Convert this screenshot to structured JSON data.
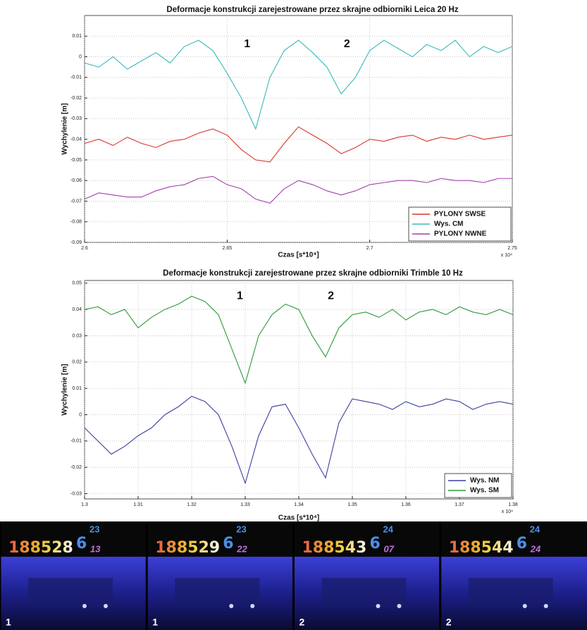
{
  "chart_data": [
    {
      "type": "line",
      "title": "Deformacje konstrukcji zarejestrowane przez skrajne odbiorniki Leica 20 Hz",
      "xlabel": "Czas [s*10⁴]",
      "ylabel": "Wychylenie [m]",
      "x_multiplier": "x 10⁴",
      "annotations": [
        "1",
        "2"
      ],
      "grid": true,
      "legend": "lower right",
      "xlim": [
        2.6,
        2.75
      ],
      "xticks": [
        2.6,
        2.65,
        2.7,
        2.75
      ],
      "ylim": [
        -0.09,
        0.02
      ],
      "yticks": [
        0.01,
        0,
        -0.01,
        -0.02,
        -0.03,
        -0.04,
        -0.05,
        -0.06,
        -0.07,
        -0.08,
        -0.09
      ],
      "x": [
        2.6,
        2.605,
        2.61,
        2.615,
        2.62,
        2.625,
        2.63,
        2.635,
        2.64,
        2.645,
        2.65,
        2.655,
        2.66,
        2.665,
        2.67,
        2.675,
        2.68,
        2.685,
        2.69,
        2.695,
        2.7,
        2.705,
        2.71,
        2.715,
        2.72,
        2.725,
        2.73,
        2.735,
        2.74,
        2.745,
        2.75
      ],
      "series": [
        {
          "name": "PYLONY SWSE",
          "color": "#d9342b",
          "values": [
            -0.042,
            -0.04,
            -0.043,
            -0.039,
            -0.042,
            -0.044,
            -0.041,
            -0.04,
            -0.037,
            -0.035,
            -0.038,
            -0.045,
            -0.05,
            -0.051,
            -0.042,
            -0.034,
            -0.038,
            -0.042,
            -0.047,
            -0.044,
            -0.04,
            -0.041,
            -0.039,
            -0.038,
            -0.041,
            -0.039,
            -0.04,
            -0.038,
            -0.04,
            -0.039,
            -0.038
          ]
        },
        {
          "name": "Wys. CM",
          "color": "#3cb8b8",
          "values": [
            -0.003,
            -0.005,
            0.0,
            -0.006,
            -0.002,
            0.002,
            -0.003,
            0.005,
            0.008,
            0.003,
            -0.008,
            -0.02,
            -0.035,
            -0.01,
            0.003,
            0.008,
            0.002,
            -0.005,
            -0.018,
            -0.01,
            0.003,
            0.008,
            0.004,
            0.0,
            0.006,
            0.003,
            0.008,
            0.0,
            0.005,
            0.002,
            0.005
          ]
        },
        {
          "name": "PYLONY NWNE",
          "color": "#a040a8",
          "values": [
            -0.069,
            -0.066,
            -0.067,
            -0.068,
            -0.068,
            -0.065,
            -0.063,
            -0.062,
            -0.059,
            -0.058,
            -0.062,
            -0.064,
            -0.069,
            -0.071,
            -0.064,
            -0.06,
            -0.062,
            -0.065,
            -0.067,
            -0.065,
            -0.062,
            -0.061,
            -0.06,
            -0.06,
            -0.061,
            -0.059,
            -0.06,
            -0.06,
            -0.061,
            -0.059,
            -0.059
          ]
        }
      ]
    },
    {
      "type": "line",
      "title": "Deformacje konstrukcji zarejestrowane przez skrajne odbiorniki Trimble 10 Hz",
      "xlabel": "Czas [s*10⁴]",
      "ylabel": "Wychylenie [m]",
      "x_multiplier": "x 10⁴",
      "annotations": [
        "1",
        "2"
      ],
      "grid": true,
      "legend": "lower right",
      "xlim": [
        1.3,
        1.38
      ],
      "xticks": [
        1.3,
        1.31,
        1.32,
        1.33,
        1.34,
        1.35,
        1.36,
        1.37,
        1.38
      ],
      "ylim": [
        -0.032,
        0.051
      ],
      "yticks": [
        0.05,
        0.04,
        0.03,
        0.02,
        0.01,
        0,
        -0.01,
        -0.02,
        -0.03
      ],
      "x": [
        1.3,
        1.3025,
        1.305,
        1.3075,
        1.31,
        1.3125,
        1.315,
        1.3175,
        1.32,
        1.3225,
        1.325,
        1.3275,
        1.33,
        1.3325,
        1.335,
        1.3375,
        1.34,
        1.3425,
        1.345,
        1.3475,
        1.35,
        1.3525,
        1.355,
        1.3575,
        1.36,
        1.3625,
        1.365,
        1.3675,
        1.37,
        1.3725,
        1.375,
        1.3775,
        1.38
      ],
      "series": [
        {
          "name": "Wys. NM",
          "color": "#3a3fa0",
          "values": [
            -0.005,
            -0.01,
            -0.015,
            -0.012,
            -0.008,
            -0.005,
            0.0,
            0.003,
            0.007,
            0.005,
            0.0,
            -0.012,
            -0.026,
            -0.008,
            0.003,
            0.004,
            -0.005,
            -0.015,
            -0.024,
            -0.003,
            0.006,
            0.005,
            0.004,
            0.002,
            0.005,
            0.003,
            0.004,
            0.006,
            0.005,
            0.002,
            0.004,
            0.005,
            0.004
          ]
        },
        {
          "name": "Wys. SM",
          "color": "#2e9a3a",
          "values": [
            0.04,
            0.041,
            0.038,
            0.04,
            0.033,
            0.037,
            0.04,
            0.042,
            0.045,
            0.043,
            0.038,
            0.025,
            0.012,
            0.03,
            0.038,
            0.042,
            0.04,
            0.03,
            0.022,
            0.033,
            0.038,
            0.039,
            0.037,
            0.04,
            0.036,
            0.039,
            0.04,
            0.038,
            0.041,
            0.039,
            0.038,
            0.04,
            0.038
          ]
        }
      ]
    }
  ],
  "frames": [
    {
      "counter": "188528",
      "hour": "6",
      "minute": "23",
      "second": "13",
      "label": "1"
    },
    {
      "counter": "188529",
      "hour": "6",
      "minute": "23",
      "second": "22",
      "label": "1"
    },
    {
      "counter": "188543",
      "hour": "6",
      "minute": "24",
      "second": "07",
      "label": "2"
    },
    {
      "counter": "188544",
      "hour": "6",
      "minute": "24",
      "second": "24",
      "label": "2"
    }
  ]
}
